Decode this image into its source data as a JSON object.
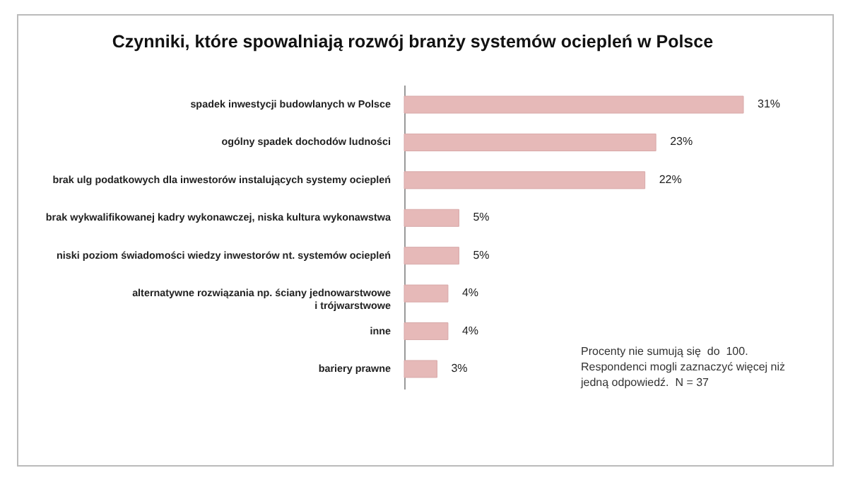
{
  "chart_data": {
    "type": "bar",
    "orientation": "horizontal",
    "title": "Czynniki, które spowalniają rozwój branży systemów ociepleń w Polsce",
    "categories": [
      "spadek inwestycji budowlanych w Polsce",
      "ogólny spadek dochodów ludności",
      "brak ulg podatkowych dla inwestorów instalujących systemy ociepleń",
      "brak wykwalifikowanej kadry wykonawczej, niska kultura wykonawstwa",
      "niski poziom świadomości wiedzy inwestorów nt. systemów ociepleń",
      "alternatywne rozwiązania np. ściany  jednowarstwowe\ni trójwarstwowe",
      "inne",
      "bariery prawne"
    ],
    "values": [
      31,
      23,
      22,
      5,
      5,
      4,
      4,
      3
    ],
    "value_labels": [
      "31%",
      "23%",
      "22%",
      "5%",
      "5%",
      "4%",
      "4%",
      "3%"
    ],
    "color": "#e6b9b8",
    "annotations": [
      "Procenty nie sumują się  do  100.\nRespondenci mogli zaznaczyć więcej niż\njedną odpowiedź.  N = 37"
    ]
  }
}
